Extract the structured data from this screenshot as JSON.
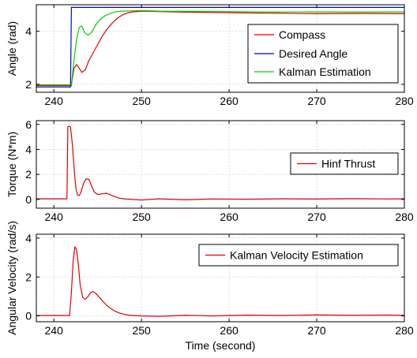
{
  "colors": {
    "compass": "#e00000",
    "desired": "#0000e6",
    "kalman": "#00d000",
    "thrust": "#e00000",
    "velocity": "#e00000"
  },
  "chart_data": [
    {
      "type": "line",
      "ylabel": "Angle (rad)",
      "xlabel": "",
      "xlim": [
        238,
        280
      ],
      "ylim": [
        1.7,
        5.0
      ],
      "xticks": [
        240,
        250,
        260,
        270,
        280
      ],
      "yticks": [
        2,
        4
      ],
      "grid": true,
      "legend_position": "right",
      "series": [
        {
          "name": "Compass",
          "color": "#e00000",
          "x": [
            238,
            242.0,
            242.1,
            242.3,
            242.6,
            242.9,
            243.2,
            243.6,
            244.0,
            244.5,
            245.0,
            245.5,
            246.0,
            246.5,
            247.0,
            247.5,
            248.0,
            248.5,
            249.0,
            250.0,
            252.0,
            255.0,
            260.0,
            265.0,
            270.0,
            275.0,
            280.0
          ],
          "y": [
            1.95,
            1.95,
            2.2,
            2.6,
            2.75,
            2.6,
            2.45,
            2.55,
            2.9,
            3.2,
            3.5,
            3.8,
            4.05,
            4.25,
            4.42,
            4.55,
            4.64,
            4.7,
            4.73,
            4.76,
            4.74,
            4.72,
            4.7,
            4.68,
            4.66,
            4.67,
            4.66
          ]
        },
        {
          "name": "Desired Angle",
          "color": "#0000e6",
          "x": [
            238,
            241.9,
            242.0,
            280.0
          ],
          "y": [
            1.9,
            1.9,
            4.9,
            4.9
          ]
        },
        {
          "name": "Kalman Estimation",
          "color": "#00d000",
          "x": [
            238,
            242.0,
            242.3,
            242.6,
            242.9,
            243.2,
            243.5,
            243.9,
            244.3,
            244.8,
            245.3,
            245.9,
            246.5,
            247.2,
            248.0,
            249.0,
            250.0,
            252.0,
            255.0,
            260.0,
            265.0,
            270.0,
            275.0,
            280.0
          ],
          "y": [
            1.98,
            1.98,
            2.9,
            3.7,
            4.15,
            4.2,
            3.95,
            3.85,
            3.95,
            4.25,
            4.45,
            4.6,
            4.68,
            4.74,
            4.76,
            4.77,
            4.78,
            4.76,
            4.75,
            4.74,
            4.72,
            4.73,
            4.72,
            4.73
          ]
        }
      ]
    },
    {
      "type": "line",
      "ylabel": "Torque (N*m)",
      "xlabel": "",
      "xlim": [
        238,
        280
      ],
      "ylim": [
        -0.7,
        6.3
      ],
      "xticks": [
        240,
        250,
        260,
        270,
        280
      ],
      "yticks": [
        0,
        2,
        4,
        6
      ],
      "grid": true,
      "legend_position": "top-right",
      "series": [
        {
          "name": "Hinf Thrust",
          "color": "#e00000",
          "x": [
            238,
            241.5,
            241.6,
            241.7,
            241.9,
            242.1,
            242.3,
            242.5,
            242.7,
            242.9,
            243.1,
            243.4,
            243.7,
            244.0,
            244.3,
            244.6,
            245.0,
            245.5,
            246.0,
            246.5,
            247.0,
            247.5,
            248.0,
            249.0,
            250.0,
            252.0,
            255.0,
            258.0,
            262.0,
            266.0,
            270.0,
            274.0,
            278.0,
            280.0
          ],
          "y": [
            0.05,
            0.05,
            5.8,
            5.85,
            5.8,
            4.5,
            2.6,
            1.0,
            0.35,
            0.3,
            0.6,
            1.3,
            1.65,
            1.6,
            1.1,
            0.6,
            0.4,
            0.45,
            0.5,
            0.35,
            0.2,
            0.1,
            0.05,
            0.0,
            -0.05,
            0.05,
            -0.03,
            0.04,
            0.02,
            0.05,
            0.03,
            0.06,
            0.04,
            0.05
          ]
        }
      ]
    },
    {
      "type": "line",
      "ylabel": "Angular Velocity (rad/s)",
      "xlabel": "Time (second)",
      "xlim": [
        238,
        280
      ],
      "ylim": [
        -0.3,
        4.2
      ],
      "xticks": [
        240,
        250,
        260,
        270,
        280
      ],
      "yticks": [
        0,
        2,
        4
      ],
      "grid": true,
      "legend_position": "top-right",
      "series": [
        {
          "name": "Kalman Velocity Estimation",
          "color": "#e00000",
          "x": [
            238,
            241.8,
            242.0,
            242.2,
            242.4,
            242.6,
            242.8,
            243.0,
            243.3,
            243.6,
            243.9,
            244.2,
            244.5,
            244.8,
            245.2,
            245.6,
            246.0,
            246.5,
            247.0,
            247.5,
            248.0,
            248.5,
            249.0,
            250.0,
            252.0,
            255.0,
            258.0,
            262.0,
            266.0,
            270.0,
            274.0,
            278.0,
            280.0
          ],
          "y": [
            0.02,
            0.02,
            1.2,
            2.8,
            3.55,
            3.4,
            2.6,
            1.6,
            0.95,
            0.85,
            1.0,
            1.2,
            1.25,
            1.15,
            0.95,
            0.75,
            0.55,
            0.38,
            0.24,
            0.14,
            0.08,
            0.04,
            0.02,
            0.0,
            -0.02,
            0.03,
            0.0,
            0.04,
            0.02,
            0.05,
            0.03,
            0.04,
            0.03
          ]
        }
      ]
    }
  ]
}
